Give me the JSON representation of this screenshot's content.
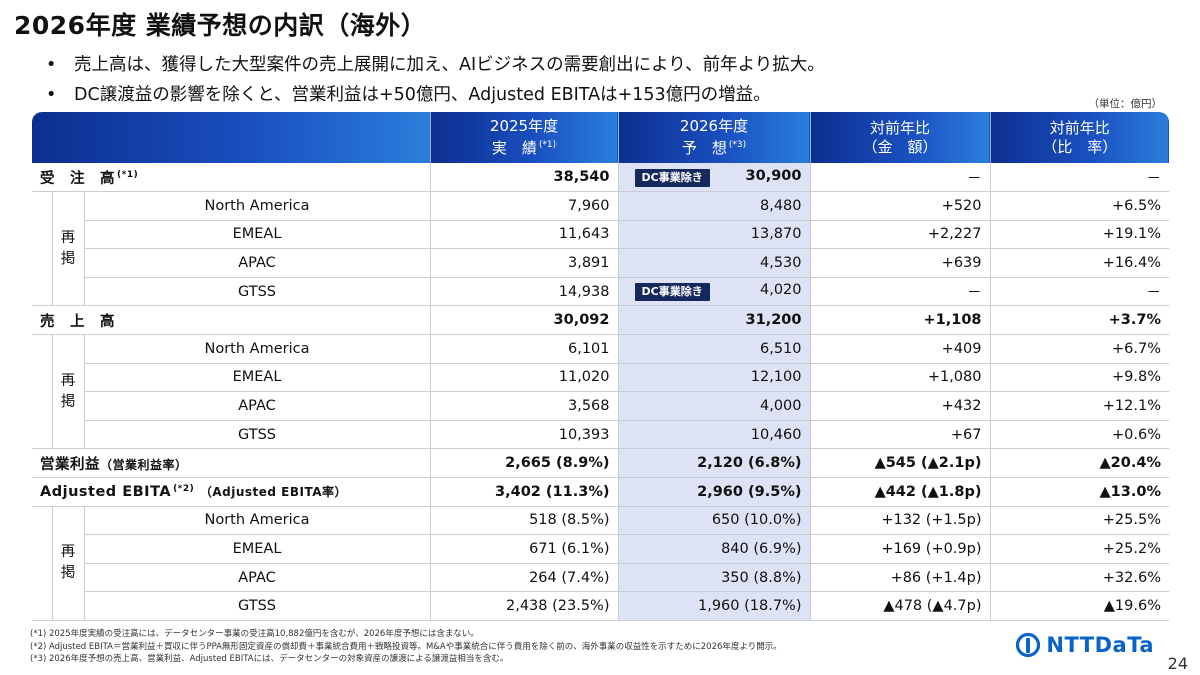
{
  "title": "2026年度 業績予想の内訳（海外）",
  "bullets": [
    "売上高は、獲得した大型案件の売上展開に加え、AIビジネスの需要創出により、前年より拡大。",
    "DC譲渡益の影響を除くと、営業利益は+50億円、Adjusted EBITAは+153億円の増益。"
  ],
  "unit": "（単位：億円）",
  "header": {
    "c1_line1": "2025年度",
    "c1_line2": "実　績",
    "c1_note": "(*1)",
    "c2_line1": "2026年度",
    "c2_line2": "予　想",
    "c2_note": "(*3)",
    "c3_line1": "対前年比",
    "c3_line2": "（金　額）",
    "c4_line1": "対前年比",
    "c4_line2": "（比　率）"
  },
  "reposted_label": "再\n掲",
  "dc_badge": "DC事業除き",
  "orders": {
    "label": "受　注　高",
    "note": "(*1)",
    "values": [
      "38,540",
      "30,900",
      "－",
      "－"
    ],
    "rows": [
      {
        "region": "North America",
        "values": [
          "7,960",
          "8,480",
          "+520",
          "+6.5%"
        ]
      },
      {
        "region": "EMEAL",
        "values": [
          "11,643",
          "13,870",
          "+2,227",
          "+19.1%"
        ]
      },
      {
        "region": "APAC",
        "values": [
          "3,891",
          "4,530",
          "+639",
          "+16.4%"
        ]
      },
      {
        "region": "GTSS",
        "values": [
          "14,938",
          "4,020",
          "－",
          "－"
        ]
      }
    ]
  },
  "sales": {
    "label": "売　上　高",
    "values": [
      "30,092",
      "31,200",
      "+1,108",
      "+3.7%"
    ],
    "rows": [
      {
        "region": "North America",
        "values": [
          "6,101",
          "6,510",
          "+409",
          "+6.7%"
        ]
      },
      {
        "region": "EMEAL",
        "values": [
          "11,020",
          "12,100",
          "+1,080",
          "+9.8%"
        ]
      },
      {
        "region": "APAC",
        "values": [
          "3,568",
          "4,000",
          "+432",
          "+12.1%"
        ]
      },
      {
        "region": "GTSS",
        "values": [
          "10,393",
          "10,460",
          "+67",
          "+0.6%"
        ]
      }
    ]
  },
  "op_profit": {
    "label": "営業利益",
    "sub": "（営業利益率）",
    "values": [
      "2,665 (8.9%)",
      "2,120 (6.8%)",
      "▲545 (▲2.1p)",
      "▲20.4%"
    ]
  },
  "ebita": {
    "label": "Adjusted EBITA",
    "note": "(*2)",
    "sub": "（Adjusted EBITA率）",
    "values": [
      "3,402 (11.3%)",
      "2,960 (9.5%)",
      "▲442 (▲1.8p)",
      "▲13.0%"
    ],
    "rows": [
      {
        "region": "North America",
        "values": [
          "518 (8.5%)",
          "650 (10.0%)",
          "+132 (+1.5p)",
          "+25.5%"
        ]
      },
      {
        "region": "EMEAL",
        "values": [
          "671 (6.1%)",
          "840 (6.9%)",
          "+169 (+0.9p)",
          "+25.2%"
        ]
      },
      {
        "region": "APAC",
        "values": [
          "264 (7.4%)",
          "350 (8.8%)",
          "+86 (+1.4p)",
          "+32.6%"
        ]
      },
      {
        "region": "GTSS",
        "values": [
          "2,438 (23.5%)",
          "1,960 (18.7%)",
          "▲478 (▲4.7p)",
          "▲19.6%"
        ]
      }
    ]
  },
  "notes": [
    "(*1) 2025年度実績の受注高には、データセンター事業の受注高10,882億円を含むが、2026年度予想には含まない。",
    "(*2) Adjusted EBITA＝営業利益＋買収に伴うPPA無形固定資産の償却費＋事業統合費用＋戦略投資等。M&Aや事業統合に伴う費用を除く前の、海外事業の収益性を示すために2026年度より開示。",
    "(*3) 2026年度予想の売上高、営業利益、Adjusted EBITAには、データセンターの対象資産の譲渡による譲渡益相当を含む。"
  ],
  "logo_text": "NTTDaTa",
  "page_number": "24"
}
